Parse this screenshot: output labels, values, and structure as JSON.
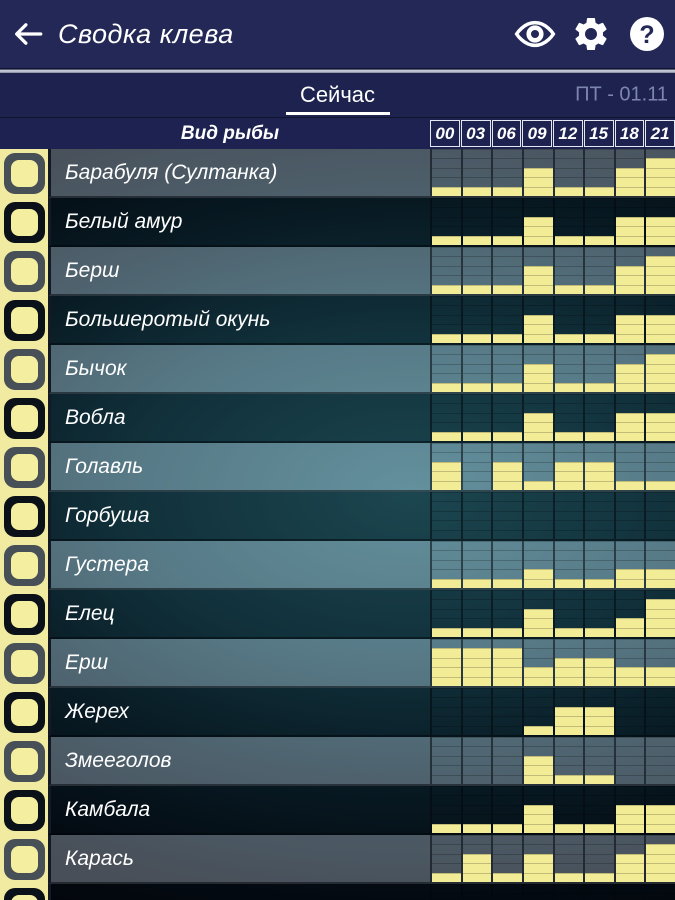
{
  "header": {
    "title": "Сводка клева",
    "back_icon": "arrow-left",
    "action_icons": [
      "eye",
      "settings-gear",
      "help-question"
    ]
  },
  "tabs": {
    "active_label": "Сейчас",
    "date_label": "ПТ - 01.11"
  },
  "table": {
    "species_header": "Вид рыбы",
    "times": [
      "00",
      "03",
      "06",
      "09",
      "12",
      "15",
      "18",
      "21"
    ],
    "max_level": 5,
    "rows": [
      {
        "name": "Барабуля (Султанка)",
        "levels": [
          1,
          1,
          1,
          3,
          1,
          1,
          3,
          4
        ]
      },
      {
        "name": "Белый амур",
        "levels": [
          1,
          1,
          1,
          3,
          1,
          1,
          3,
          3
        ]
      },
      {
        "name": "Берш",
        "levels": [
          1,
          1,
          1,
          3,
          1,
          1,
          3,
          4
        ]
      },
      {
        "name": "Большеротый окунь",
        "levels": [
          1,
          1,
          1,
          3,
          1,
          1,
          3,
          3
        ]
      },
      {
        "name": "Бычок",
        "levels": [
          1,
          1,
          1,
          3,
          1,
          1,
          3,
          4
        ]
      },
      {
        "name": "Вобла",
        "levels": [
          1,
          1,
          1,
          3,
          1,
          1,
          3,
          3
        ]
      },
      {
        "name": "Голавль",
        "levels": [
          3,
          0,
          3,
          1,
          3,
          3,
          1,
          1
        ]
      },
      {
        "name": "Горбуша",
        "levels": [
          0,
          0,
          0,
          0,
          0,
          0,
          0,
          0
        ]
      },
      {
        "name": "Густера",
        "levels": [
          1,
          1,
          1,
          2,
          1,
          1,
          2,
          2
        ]
      },
      {
        "name": "Елец",
        "levels": [
          1,
          1,
          1,
          3,
          1,
          1,
          2,
          4
        ]
      },
      {
        "name": "Ерш",
        "levels": [
          4,
          4,
          4,
          2,
          3,
          3,
          2,
          2
        ]
      },
      {
        "name": "Жерех",
        "levels": [
          0,
          0,
          0,
          1,
          3,
          3,
          0,
          0
        ]
      },
      {
        "name": "Змееголов",
        "levels": [
          0,
          0,
          0,
          3,
          1,
          1,
          0,
          0
        ]
      },
      {
        "name": "Камбала",
        "levels": [
          1,
          1,
          1,
          3,
          1,
          1,
          3,
          3
        ]
      },
      {
        "name": "Карась",
        "levels": [
          1,
          3,
          1,
          3,
          1,
          1,
          3,
          4
        ]
      },
      {
        "name": "",
        "levels": [
          0,
          0,
          0,
          0,
          0,
          0,
          0,
          0
        ]
      }
    ]
  },
  "colors": {
    "topbar_navy": "#232857",
    "tabbar_navy": "#1d224e",
    "bar_yellow": "#f1ec95",
    "checkbox_yellow": "#f4efa0",
    "date_text": "#7d87ae"
  }
}
